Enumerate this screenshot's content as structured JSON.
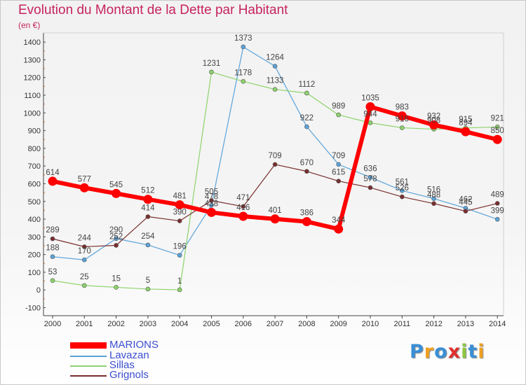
{
  "title": "Evolution du Montant de la Dette par Habitant",
  "unit_label": "(en €)",
  "logo": {
    "text": "Proxiti",
    "colors": [
      "#3a8fd6",
      "#f0a020",
      "#3a8fd6",
      "#e03030",
      "#8cc63f",
      "#3a8fd6",
      "#f0a020"
    ]
  },
  "chart_data": {
    "type": "line",
    "title": "Evolution du Montant de la Dette par Habitant",
    "ylabel": "(en €)",
    "ylim": [
      -100,
      1400
    ],
    "ytick_step": 100,
    "grid": false,
    "legend_position": "bottom-left",
    "x": [
      "2000",
      "2001",
      "2002",
      "2003",
      "2004",
      "2005",
      "2006",
      "2007",
      "2008",
      "2009",
      "2010",
      "2011",
      "2012",
      "2013",
      "2014"
    ],
    "series": [
      {
        "name": "MARIONS",
        "color": "#ff0000",
        "highlight": true,
        "values": [
          614,
          577,
          545,
          512,
          481,
          438,
          416,
          401,
          386,
          344,
          1035,
          983,
          932,
          894,
          850
        ],
        "labels": [
          "614",
          "577",
          "545",
          "512",
          "481",
          "438",
          "416",
          "401",
          "386",
          "344",
          "1035",
          "983",
          "932",
          "894",
          "850"
        ]
      },
      {
        "name": "Lavazan",
        "color": "#5ba3d9",
        "highlight": false,
        "values": [
          188,
          170,
          290,
          254,
          196,
          478,
          1373,
          1264,
          922,
          709,
          636,
          561,
          516,
          462,
          399
        ],
        "labels": [
          "188",
          "170",
          "290",
          "254",
          "196",
          "478",
          "1373",
          "1264",
          "922",
          "709",
          "636",
          "561",
          "516",
          "462",
          "399"
        ]
      },
      {
        "name": "Sillas",
        "color": "#8cd36a",
        "highlight": false,
        "values": [
          53,
          25,
          15,
          5,
          1,
          1231,
          1178,
          1133,
          1112,
          989,
          944,
          916,
          908,
          915,
          921
        ],
        "labels": [
          "53",
          "25",
          "15",
          "5",
          "1",
          "1231",
          "1178",
          "1133",
          "1112",
          "989",
          "944",
          "916",
          "908",
          "915",
          "921"
        ]
      },
      {
        "name": "Grignols",
        "color": "#7a2e2e",
        "highlight": false,
        "values": [
          289,
          244,
          252,
          414,
          390,
          505,
          471,
          709,
          670,
          615,
          578,
          526,
          488,
          445,
          489
        ],
        "labels": [
          "289",
          "244",
          "252",
          "414",
          "390",
          "505",
          "471",
          "709",
          "670",
          "615",
          "578",
          "526",
          "488",
          "445",
          "489"
        ]
      }
    ]
  }
}
